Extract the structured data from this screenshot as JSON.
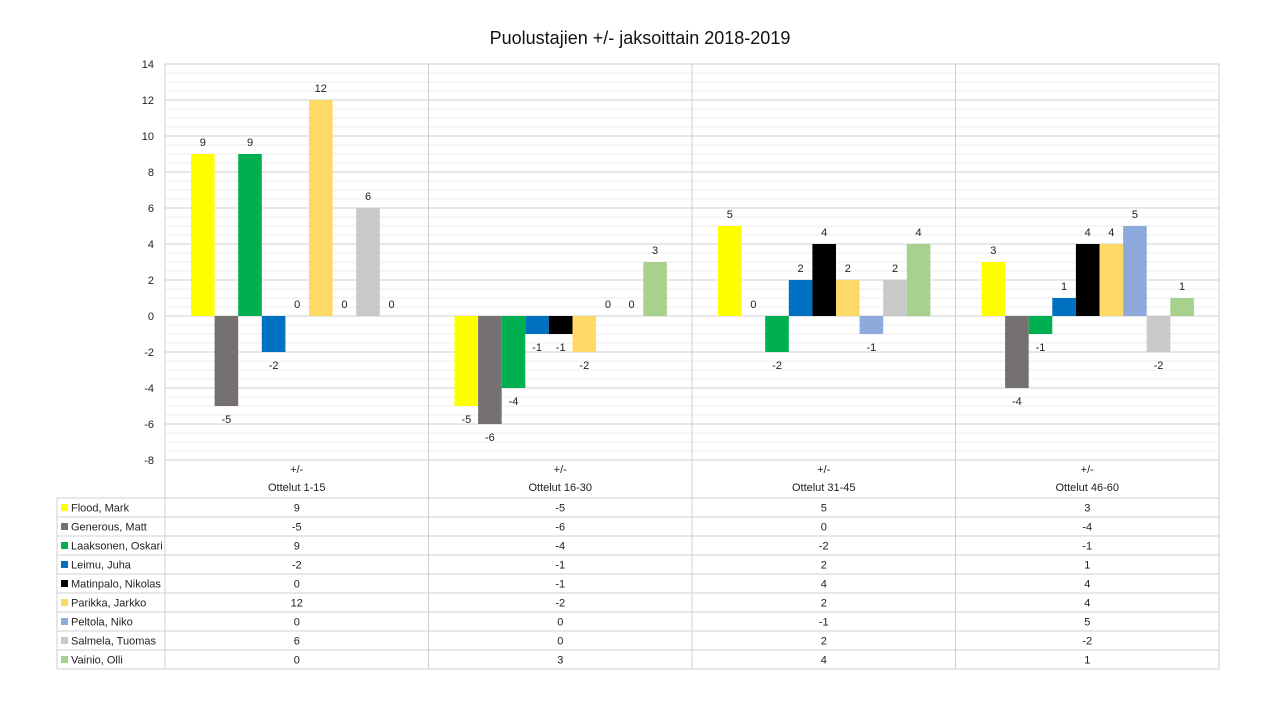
{
  "chart_data": {
    "type": "bar",
    "title": "Puolustajien +/- jaksoittain 2018-2019",
    "ylim": [
      -8,
      14
    ],
    "ytick_step": 2,
    "grid": true,
    "legend": "data-table",
    "categories": [
      {
        "top": "+/-",
        "bottom": "Ottelut 1-15"
      },
      {
        "top": "+/-",
        "bottom": "Ottelut 16-30"
      },
      {
        "top": "+/-",
        "bottom": "Ottelut 31-45"
      },
      {
        "top": "+/-",
        "bottom": "Ottelut 46-60"
      }
    ],
    "series": [
      {
        "name": "Flood, Mark",
        "color": "#FFFF00",
        "values": [
          9,
          -5,
          5,
          3
        ]
      },
      {
        "name": "Generous, Matt",
        "color": "#767171",
        "values": [
          -5,
          -6,
          0,
          -4
        ]
      },
      {
        "name": "Laaksonen, Oskari",
        "color": "#00B050",
        "values": [
          9,
          -4,
          -2,
          -1
        ]
      },
      {
        "name": "Leimu, Juha",
        "color": "#0070C0",
        "values": [
          -2,
          -1,
          2,
          1
        ]
      },
      {
        "name": "Matinpalo, Nikolas",
        "color": "#000000",
        "values": [
          0,
          -1,
          4,
          4
        ]
      },
      {
        "name": "Parikka, Jarkko",
        "color": "#FFD966",
        "values": [
          12,
          -2,
          2,
          4
        ]
      },
      {
        "name": "Peltola, Niko",
        "color": "#8EA9DB",
        "values": [
          0,
          0,
          -1,
          5
        ]
      },
      {
        "name": "Salmela, Tuomas",
        "color": "#C9C9C9",
        "values": [
          6,
          0,
          2,
          -2
        ]
      },
      {
        "name": "Vainio, Olli",
        "color": "#A9D18E",
        "values": [
          0,
          3,
          4,
          1
        ]
      }
    ]
  }
}
